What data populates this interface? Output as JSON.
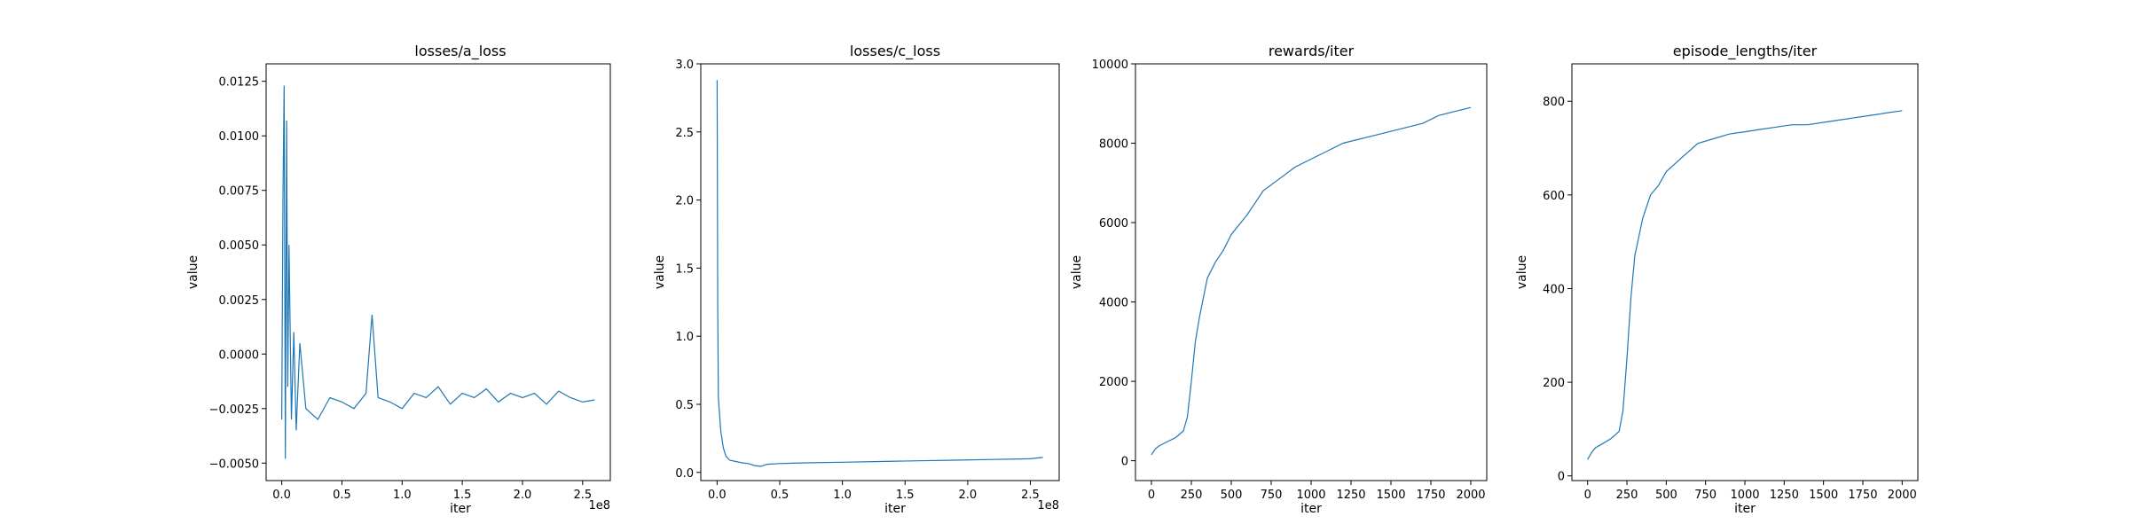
{
  "colors": {
    "series": "#1f77b4",
    "axes": "#000000",
    "background": "#ffffff"
  },
  "chart_data": [
    {
      "type": "line",
      "title": "losses/a_loss",
      "xlabel": "iter",
      "ylabel": "value",
      "x_offset_text": "1e8",
      "xlim": [
        -0.13,
        2.73
      ],
      "ylim": [
        -0.0058,
        0.0133
      ],
      "xticks": [
        0.0,
        0.5,
        1.0,
        1.5,
        2.0,
        2.5
      ],
      "xtick_labels": [
        "0.0",
        "0.5",
        "1.0",
        "1.5",
        "2.0",
        "2.5"
      ],
      "yticks": [
        -0.005,
        -0.0025,
        0.0,
        0.0025,
        0.005,
        0.0075,
        0.01,
        0.0125
      ],
      "ytick_labels": [
        "−0.0050",
        "−0.0025",
        "0.0000",
        "0.0025",
        "0.0050",
        "0.0075",
        "0.0100",
        "0.0125"
      ],
      "grid": false,
      "series": [
        {
          "x": [
            0.0,
            0.01,
            0.02,
            0.03,
            0.04,
            0.05,
            0.06,
            0.08,
            0.1,
            0.12,
            0.15,
            0.2,
            0.3,
            0.4,
            0.5,
            0.6,
            0.7,
            0.75,
            0.8,
            0.9,
            1.0,
            1.1,
            1.2,
            1.3,
            1.4,
            1.5,
            1.6,
            1.7,
            1.8,
            1.9,
            2.0,
            2.1,
            2.2,
            2.3,
            2.4,
            2.5,
            2.6
          ],
          "y": [
            -0.003,
            0.0072,
            0.0123,
            -0.0048,
            0.0107,
            -0.0015,
            0.005,
            -0.003,
            0.001,
            -0.0035,
            0.0005,
            -0.0025,
            -0.003,
            -0.002,
            -0.0022,
            -0.0025,
            -0.0018,
            0.0018,
            -0.002,
            -0.0022,
            -0.0025,
            -0.0018,
            -0.002,
            -0.0015,
            -0.0023,
            -0.0018,
            -0.002,
            -0.0016,
            -0.0022,
            -0.0018,
            -0.002,
            -0.0018,
            -0.0023,
            -0.0017,
            -0.002,
            -0.0022,
            -0.0021
          ]
        }
      ]
    },
    {
      "type": "line",
      "title": "losses/c_loss",
      "xlabel": "iter",
      "ylabel": "value",
      "x_offset_text": "1e8",
      "xlim": [
        -0.13,
        2.73
      ],
      "ylim": [
        -0.06,
        3.0
      ],
      "xticks": [
        0.0,
        0.5,
        1.0,
        1.5,
        2.0,
        2.5
      ],
      "xtick_labels": [
        "0.0",
        "0.5",
        "1.0",
        "1.5",
        "2.0",
        "2.5"
      ],
      "yticks": [
        0.0,
        0.5,
        1.0,
        1.5,
        2.0,
        2.5,
        3.0
      ],
      "ytick_labels": [
        "0.0",
        "0.5",
        "1.0",
        "1.5",
        "2.0",
        "2.5",
        "3.0"
      ],
      "grid": false,
      "series": [
        {
          "x": [
            0.0,
            0.005,
            0.01,
            0.02,
            0.03,
            0.05,
            0.07,
            0.1,
            0.15,
            0.2,
            0.25,
            0.3,
            0.35,
            0.4,
            0.5,
            0.7,
            1.0,
            1.3,
            1.6,
            1.9,
            2.2,
            2.5,
            2.6
          ],
          "y": [
            2.88,
            1.2,
            0.55,
            0.42,
            0.3,
            0.18,
            0.12,
            0.09,
            0.08,
            0.07,
            0.065,
            0.05,
            0.045,
            0.06,
            0.065,
            0.07,
            0.075,
            0.08,
            0.085,
            0.09,
            0.095,
            0.1,
            0.11
          ]
        }
      ]
    },
    {
      "type": "line",
      "title": "rewards/iter",
      "xlabel": "iter",
      "ylabel": "value",
      "xlim": [
        -100,
        2100
      ],
      "ylim": [
        -500,
        10000
      ],
      "xticks": [
        0,
        250,
        500,
        750,
        1000,
        1250,
        1500,
        1750,
        2000
      ],
      "xtick_labels": [
        "0",
        "250",
        "500",
        "750",
        "1000",
        "1250",
        "1500",
        "1750",
        "2000"
      ],
      "yticks": [
        0,
        2000,
        4000,
        6000,
        8000,
        10000
      ],
      "ytick_labels": [
        "0",
        "2000",
        "4000",
        "6000",
        "8000",
        "10000"
      ],
      "grid": false,
      "series": [
        {
          "x": [
            0,
            25,
            50,
            100,
            150,
            200,
            225,
            250,
            275,
            300,
            325,
            350,
            400,
            450,
            500,
            600,
            700,
            800,
            900,
            1000,
            1100,
            1200,
            1300,
            1400,
            1500,
            1600,
            1700,
            1800,
            1900,
            2000
          ],
          "y": [
            150,
            300,
            380,
            480,
            580,
            750,
            1100,
            2000,
            3000,
            3600,
            4100,
            4600,
            5000,
            5300,
            5700,
            6200,
            6800,
            7100,
            7400,
            7600,
            7800,
            8000,
            8100,
            8200,
            8300,
            8400,
            8500,
            8700,
            8800,
            8900
          ]
        }
      ]
    },
    {
      "type": "line",
      "title": "episode_lengths/iter",
      "xlabel": "iter",
      "ylabel": "value",
      "xlim": [
        -100,
        2100
      ],
      "ylim": [
        -10,
        880
      ],
      "xticks": [
        0,
        250,
        500,
        750,
        1000,
        1250,
        1500,
        1750,
        2000
      ],
      "xtick_labels": [
        "0",
        "250",
        "500",
        "750",
        "1000",
        "1250",
        "1500",
        "1750",
        "2000"
      ],
      "yticks": [
        0,
        200,
        400,
        600,
        800
      ],
      "ytick_labels": [
        "0",
        "200",
        "400",
        "600",
        "800"
      ],
      "grid": false,
      "series": [
        {
          "x": [
            0,
            25,
            50,
            100,
            150,
            200,
            225,
            250,
            275,
            300,
            350,
            400,
            450,
            500,
            600,
            700,
            800,
            900,
            1000,
            1100,
            1200,
            1300,
            1400,
            1500,
            1600,
            1700,
            1800,
            1900,
            2000
          ],
          "y": [
            35,
            50,
            60,
            70,
            80,
            95,
            140,
            250,
            380,
            470,
            550,
            600,
            620,
            650,
            680,
            710,
            720,
            730,
            735,
            740,
            745,
            750,
            750,
            755,
            760,
            765,
            770,
            775,
            780
          ]
        }
      ]
    }
  ]
}
